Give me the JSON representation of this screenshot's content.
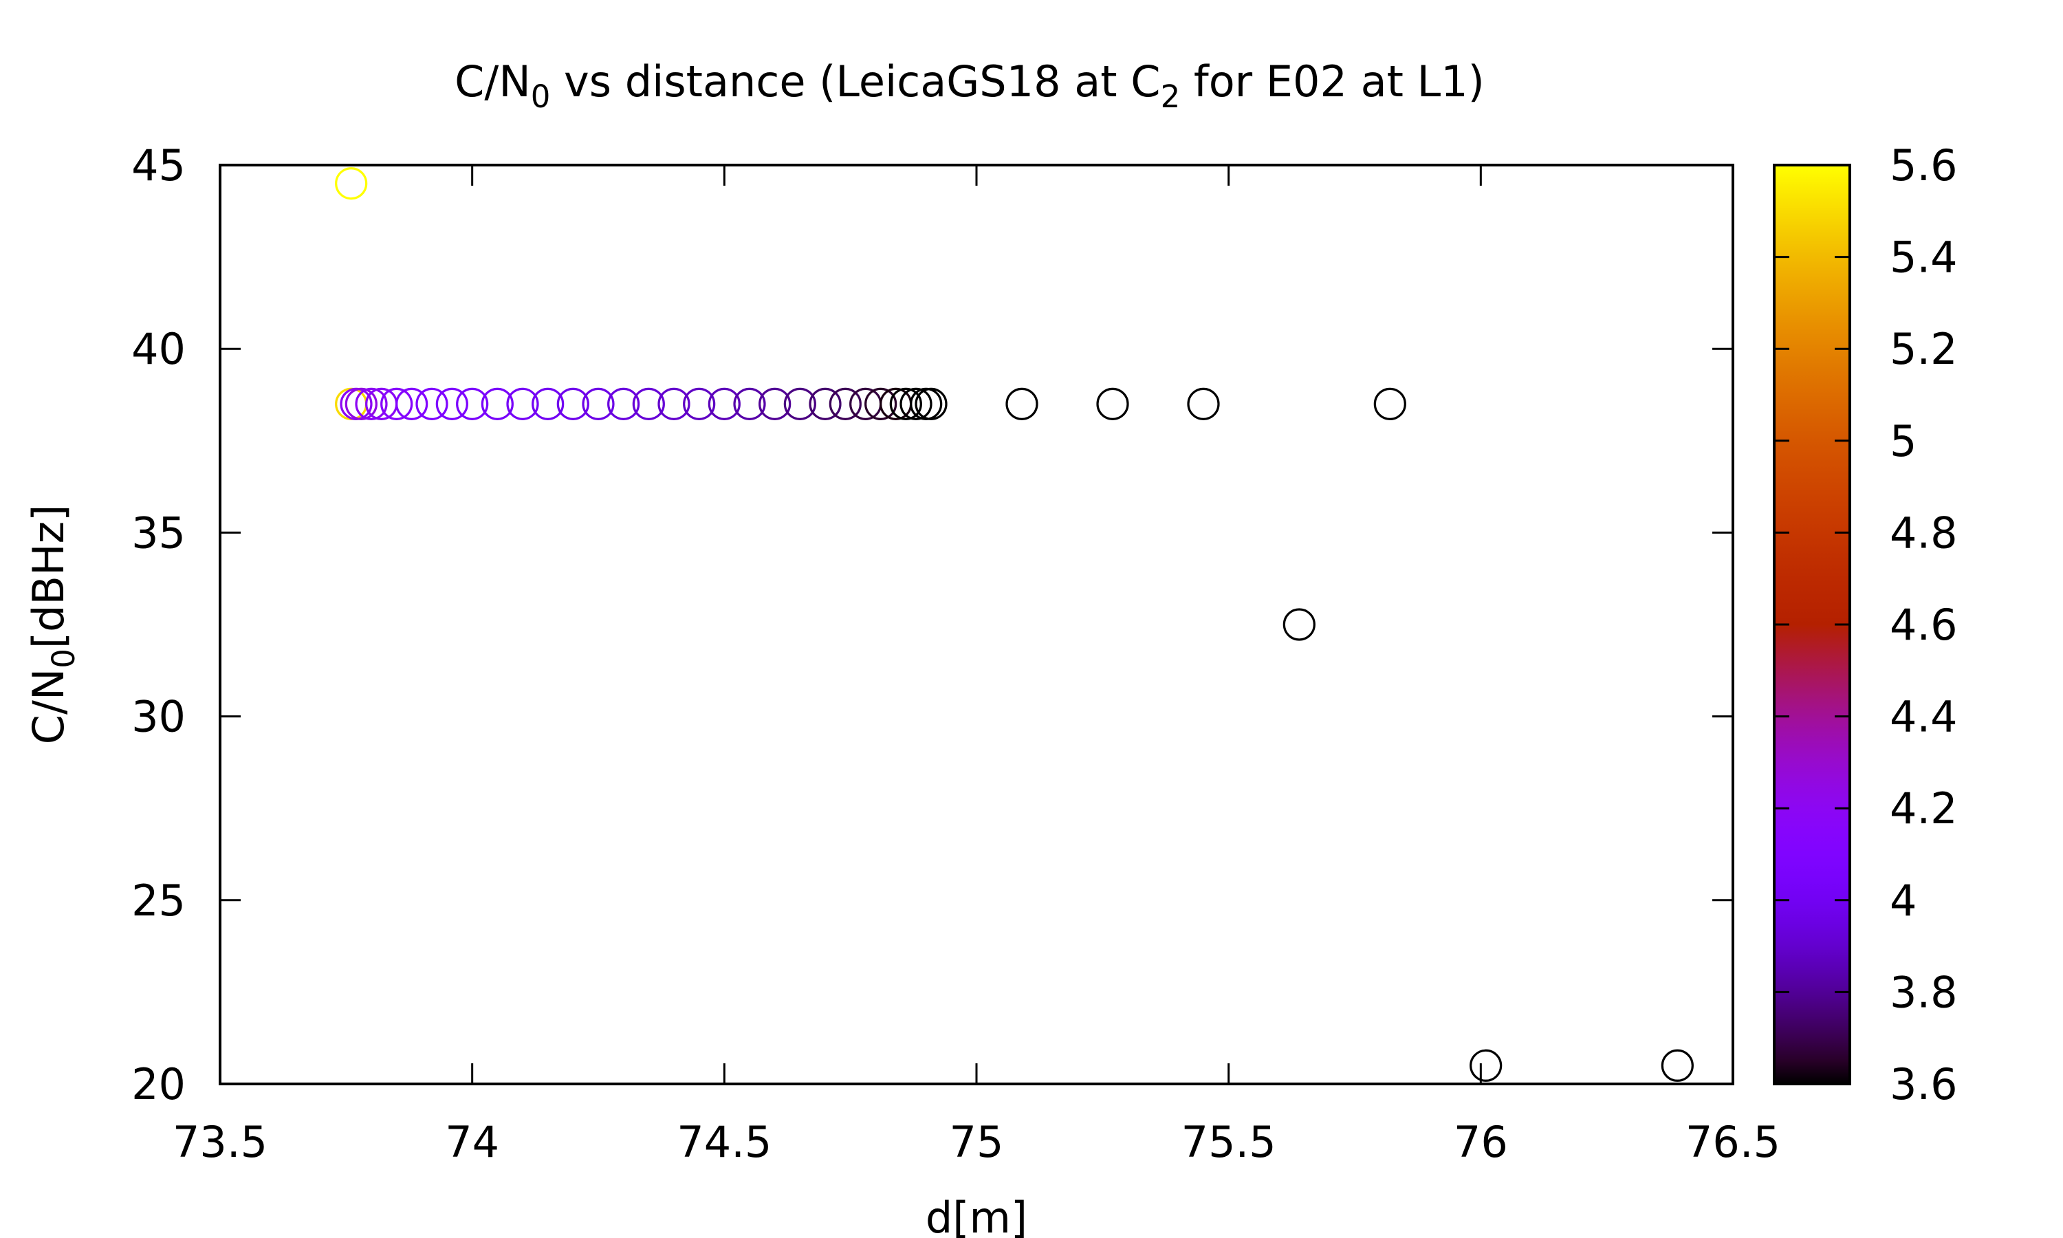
{
  "chart_data": {
    "type": "scatter",
    "title": {
      "parts": [
        {
          "text": "C/N",
          "sub": false
        },
        {
          "text": "0",
          "sub": true
        },
        {
          "text": " vs distance (LeicaGS18 at C",
          "sub": false
        },
        {
          "text": "2",
          "sub": true
        },
        {
          "text": " for E02 at L1)",
          "sub": false
        }
      ]
    },
    "xlabel": "d[m]",
    "ylabel": {
      "parts": [
        {
          "text": "C/N",
          "sub": false
        },
        {
          "text": "0",
          "sub": true
        },
        {
          "text": "[dBHz]",
          "sub": false
        }
      ]
    },
    "xlim": [
      73.5,
      76.5
    ],
    "ylim": [
      20,
      45
    ],
    "xticks": [
      "73.5",
      "74",
      "74.5",
      "75",
      "75.5",
      "76",
      "76.5"
    ],
    "yticks": [
      "20",
      "25",
      "30",
      "35",
      "40",
      "45"
    ],
    "grid": false,
    "marker": "open-circle",
    "colorbar": {
      "range": [
        3.6,
        5.6
      ],
      "ticks": [
        "3.6",
        "3.8",
        "4",
        "4.2",
        "4.4",
        "4.6",
        "4.8",
        "5",
        "5.2",
        "5.4",
        "5.6"
      ],
      "palette": "gnuplot default (black-blue-purple-red-orange-yellow)"
    },
    "points": [
      {
        "x": 73.76,
        "y": 44.5,
        "c": 5.6
      },
      {
        "x": 73.76,
        "y": 38.5,
        "c": 5.5
      },
      {
        "x": 73.77,
        "y": 38.5,
        "c": 4.2
      },
      {
        "x": 73.78,
        "y": 38.5,
        "c": 4.25
      },
      {
        "x": 73.8,
        "y": 38.5,
        "c": 4.2
      },
      {
        "x": 73.82,
        "y": 38.5,
        "c": 4.18
      },
      {
        "x": 73.85,
        "y": 38.5,
        "c": 4.15
      },
      {
        "x": 73.88,
        "y": 38.5,
        "c": 4.12
      },
      {
        "x": 73.92,
        "y": 38.5,
        "c": 4.1
      },
      {
        "x": 73.96,
        "y": 38.5,
        "c": 4.08
      },
      {
        "x": 74.0,
        "y": 38.5,
        "c": 4.06
      },
      {
        "x": 74.05,
        "y": 38.5,
        "c": 4.04
      },
      {
        "x": 74.1,
        "y": 38.5,
        "c": 4.02
      },
      {
        "x": 74.15,
        "y": 38.5,
        "c": 4.0
      },
      {
        "x": 74.2,
        "y": 38.5,
        "c": 3.98
      },
      {
        "x": 74.25,
        "y": 38.5,
        "c": 3.96
      },
      {
        "x": 74.3,
        "y": 38.5,
        "c": 3.94
      },
      {
        "x": 74.35,
        "y": 38.5,
        "c": 3.92
      },
      {
        "x": 74.4,
        "y": 38.5,
        "c": 3.9
      },
      {
        "x": 74.45,
        "y": 38.5,
        "c": 3.88
      },
      {
        "x": 74.5,
        "y": 38.5,
        "c": 3.86
      },
      {
        "x": 74.55,
        "y": 38.5,
        "c": 3.83
      },
      {
        "x": 74.6,
        "y": 38.5,
        "c": 3.8
      },
      {
        "x": 74.65,
        "y": 38.5,
        "c": 3.77
      },
      {
        "x": 74.7,
        "y": 38.5,
        "c": 3.74
      },
      {
        "x": 74.74,
        "y": 38.5,
        "c": 3.71
      },
      {
        "x": 74.78,
        "y": 38.5,
        "c": 3.68
      },
      {
        "x": 74.81,
        "y": 38.5,
        "c": 3.65
      },
      {
        "x": 74.84,
        "y": 38.5,
        "c": 3.62
      },
      {
        "x": 74.86,
        "y": 38.5,
        "c": 3.6
      },
      {
        "x": 74.88,
        "y": 38.5,
        "c": 3.6
      },
      {
        "x": 74.9,
        "y": 38.5,
        "c": 3.6
      },
      {
        "x": 74.91,
        "y": 38.5,
        "c": 3.6
      },
      {
        "x": 75.09,
        "y": 38.5,
        "c": 3.6
      },
      {
        "x": 75.27,
        "y": 38.5,
        "c": 3.6
      },
      {
        "x": 75.45,
        "y": 38.5,
        "c": 3.6
      },
      {
        "x": 75.82,
        "y": 38.5,
        "c": 3.6
      },
      {
        "x": 75.64,
        "y": 32.5,
        "c": 3.6
      },
      {
        "x": 76.01,
        "y": 20.5,
        "c": 3.6
      },
      {
        "x": 76.39,
        "y": 20.5,
        "c": 3.6
      }
    ]
  }
}
